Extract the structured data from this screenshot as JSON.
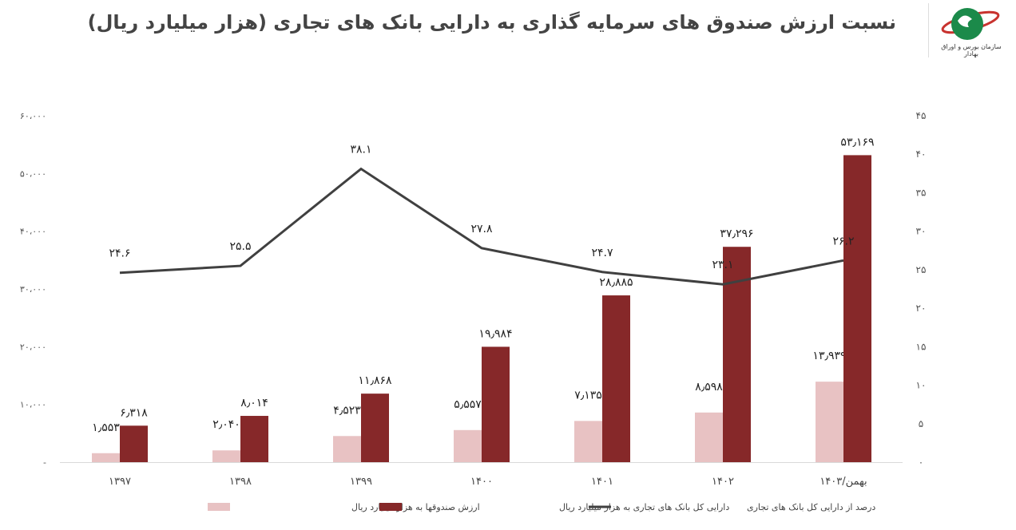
{
  "header": {
    "title": "نسبت ارزش صندوق های سرمایه گذاری به دارایی بانک های تجاری (هزار میلیارد ریال)",
    "logo_text": "سازمان بورس و اوراق بهادار"
  },
  "chart_data": {
    "type": "bar+line",
    "title": "نسبت ارزش صندوق های سرمایه گذاری به دارایی بانک های تجاری (هزار میلیارد ریال)",
    "categories": [
      "۱۳۹۷",
      "۱۳۹۸",
      "۱۳۹۹",
      "۱۴۰۰",
      "۱۴۰۱",
      "۱۴۰۲",
      "۱۴۰۳/بهمن"
    ],
    "y_left": {
      "range": [
        0,
        60000
      ],
      "ticks": [
        "-",
        "۱۰،۰۰۰",
        "۲۰،۰۰۰",
        "۳۰،۰۰۰",
        "۴۰،۰۰۰",
        "۵۰،۰۰۰",
        "۶۰،۰۰۰"
      ]
    },
    "y_right": {
      "range": [
        0,
        45
      ],
      "ticks": [
        "۰",
        "۵",
        "۱۰",
        "۱۵",
        "۲۰",
        "۲۵",
        "۳۰",
        "۳۵",
        "۴۰",
        "۴۵"
      ]
    },
    "grid": false,
    "legend_position": "bottom",
    "series": [
      {
        "name": "ارزش صندوقها به هزار میلیارد ریال",
        "type": "bar",
        "axis": "left",
        "color": "#e8c2c3",
        "values": [
          1553,
          2040,
          4523,
          5557,
          7135,
          8598,
          13939
        ],
        "labels": [
          "۱٫۵۵۳",
          "۲٫۰۴۰",
          "۴٫۵۲۳",
          "۵٫۵۵۷",
          "۷٫۱۳۵",
          "۸٫۵۹۸",
          "۱۳٫۹۳۹"
        ]
      },
      {
        "name": "دارایی کل بانک های تجاری به هزار میلیارد ریال",
        "type": "bar",
        "axis": "left",
        "color": "#862829",
        "values": [
          6318,
          8014,
          11868,
          19984,
          28885,
          37296,
          53169
        ],
        "labels": [
          "۶٫۳۱۸",
          "۸٫۰۱۴",
          "۱۱٫۸۶۸",
          "۱۹٫۹۸۴",
          "۲۸٫۸۸۵",
          "۳۷٫۲۹۶",
          "۵۳٫۱۶۹"
        ]
      },
      {
        "name": "درصد از دارایی کل بانک های تجاری",
        "type": "line",
        "axis": "right",
        "color": "#404040",
        "values": [
          24.6,
          25.5,
          38.1,
          27.8,
          24.7,
          23.1,
          26.2
        ],
        "labels": [
          "۲۴.۶",
          "۲۵.۵",
          "۳۸.۱",
          "۲۷.۸",
          "۲۴.۷",
          "۲۳.۱",
          "۲۶.۲"
        ]
      }
    ]
  }
}
